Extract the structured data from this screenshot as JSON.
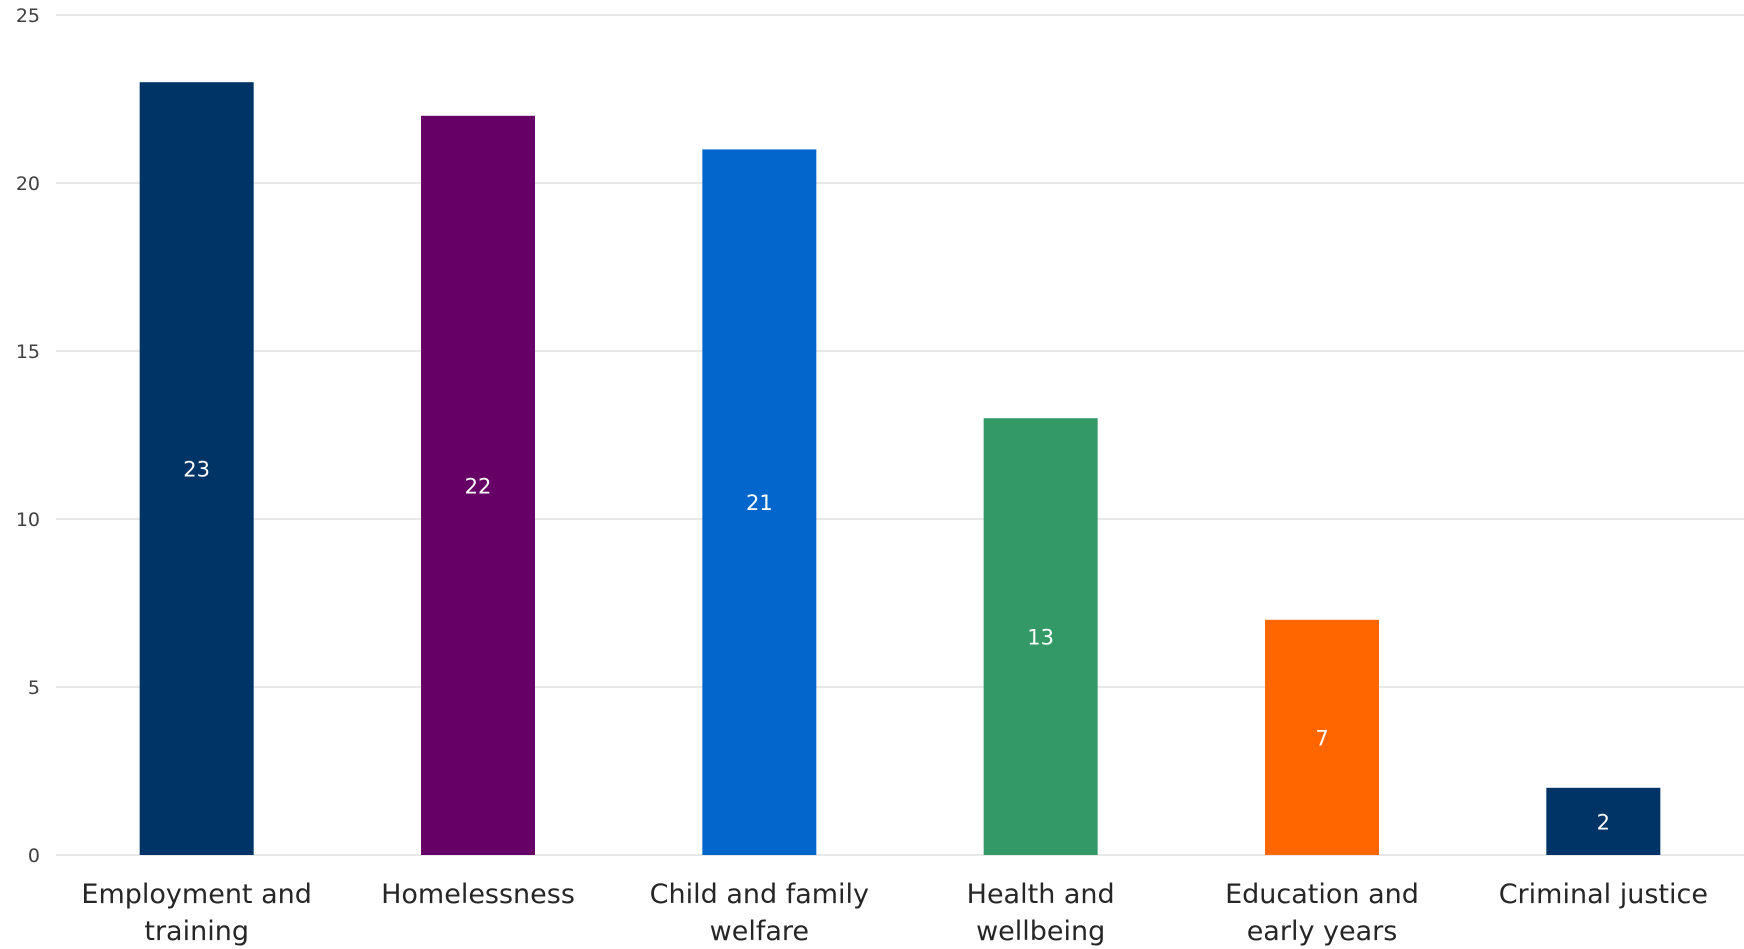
{
  "chart_data": {
    "type": "bar",
    "title": "",
    "xlabel": "",
    "ylabel": "",
    "categories": [
      [
        "Employment and",
        "training"
      ],
      [
        "Homelessness"
      ],
      [
        "Child and family",
        "welfare"
      ],
      [
        "Health and",
        "wellbeing"
      ],
      [
        "Education and",
        "early years"
      ],
      [
        "Criminal justice"
      ]
    ],
    "values": [
      23,
      22,
      21,
      13,
      7,
      2
    ],
    "bar_colors": [
      "#003366",
      "#660066",
      "#0366cc",
      "#339966",
      "#ff6600",
      "#003366"
    ],
    "ylim": [
      0,
      25
    ],
    "yticks": [
      0,
      5,
      10,
      15,
      20,
      25
    ],
    "grid": true,
    "legend": "none",
    "data_labels": true
  }
}
